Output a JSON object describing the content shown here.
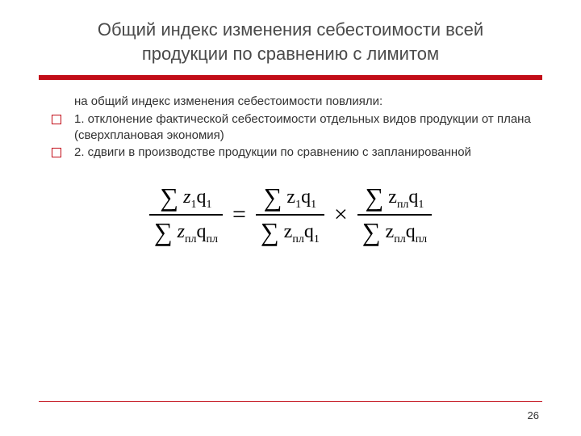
{
  "title_line1": "Общий индекс изменения себестоимости всей",
  "title_line2": "продукции по сравнению с лимитом",
  "intro": "на общий индекс изменения себестоимости повлияли:",
  "bullets": [
    "1. отклонение фактической себестоимости  отдельных видов продукции  от плана (сверхплановая экономия)",
    "2. сдвиги в производстве продукции по сравнению с запланированной"
  ],
  "colors": {
    "accent": "#c20d18",
    "text": "#323232",
    "title": "#4a4a4a",
    "formula": "#000000",
    "background": "#ffffff"
  },
  "typography": {
    "title_fontsize": 22,
    "body_fontsize": 15,
    "formula_fontsize": 24,
    "sigma_fontsize": 32
  },
  "formula": {
    "terms": [
      {
        "num_z_sub": "1",
        "num_q_sub": "1",
        "den_z_sub": "пл",
        "den_q_sub": "пл"
      },
      {
        "num_z_sub": "1",
        "num_q_sub": "1",
        "den_z_sub": "пл",
        "den_q_sub": "1"
      },
      {
        "num_z_sub": "пл",
        "num_q_sub": "1",
        "den_z_sub": "пл",
        "den_q_sub": "пл"
      }
    ],
    "eq": "=",
    "times": "×"
  },
  "page_number": "26"
}
